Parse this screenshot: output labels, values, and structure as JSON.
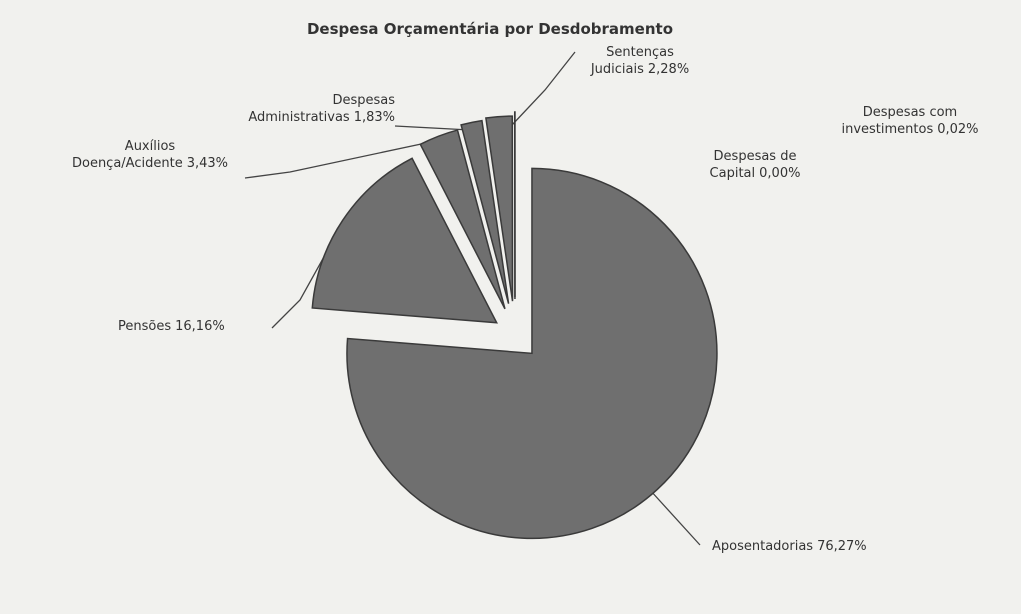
{
  "chart_data": {
    "type": "pie",
    "title": "Despesa Orçamentária por Desdobramento",
    "categories": [
      "Aposentadorias",
      "Pensões",
      "Auxílios Doença/Acidente",
      "Despesas Administrativas",
      "Sentenças Judiciais",
      "Despesas de Capital",
      "Despesas com investimentos"
    ],
    "values": [
      76.27,
      16.16,
      3.43,
      1.83,
      2.28,
      0.0,
      0.02
    ],
    "value_labels": [
      "76,27%",
      "16,16%",
      "3,43%",
      "1,83%",
      "2,28%",
      "0,00%",
      "0,02%"
    ],
    "color": "#6f6f6f"
  }
}
